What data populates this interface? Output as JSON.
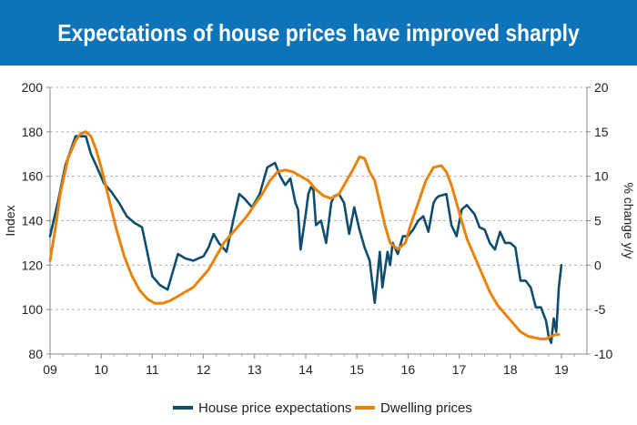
{
  "header": {
    "title": "Expectations of house prices have improved sharply",
    "bg_color": "#0d74b9",
    "text_color": "#ffffff"
  },
  "chart_data": {
    "type": "line",
    "title": "Expectations of house prices have improved sharply",
    "xlabel": "",
    "ylabel": "Index",
    "y2label": "% change y/y",
    "x_ticks": [
      "09",
      "10",
      "11",
      "12",
      "13",
      "14",
      "15",
      "16",
      "17",
      "18",
      "19"
    ],
    "xlim": [
      2009,
      2019.5
    ],
    "ylim": [
      80,
      200
    ],
    "y_ticks": [
      80,
      100,
      120,
      140,
      160,
      180,
      200
    ],
    "y2lim": [
      -10,
      20
    ],
    "y2_ticks": [
      -10,
      -5,
      0,
      5,
      10,
      15,
      20
    ],
    "grid": "horizontal dashed",
    "legend": "bottom",
    "series": [
      {
        "name": "House price expectations",
        "axis": "left",
        "color": "#0e4d6e",
        "x": [
          2009.0,
          2009.15,
          2009.3,
          2009.5,
          2009.6,
          2009.7,
          2009.8,
          2009.9,
          2010.05,
          2010.2,
          2010.35,
          2010.5,
          2010.65,
          2010.8,
          2011.0,
          2011.15,
          2011.3,
          2011.5,
          2011.65,
          2011.8,
          2012.0,
          2012.1,
          2012.2,
          2012.3,
          2012.45,
          2012.6,
          2012.7,
          2012.8,
          2012.95,
          2013.1,
          2013.25,
          2013.4,
          2013.5,
          2013.6,
          2013.7,
          2013.8,
          2013.85,
          2013.9,
          2014.0,
          2014.05,
          2014.1,
          2014.15,
          2014.2,
          2014.3,
          2014.4,
          2014.5,
          2014.55,
          2014.65,
          2014.75,
          2014.85,
          2014.95,
          2015.05,
          2015.15,
          2015.25,
          2015.35,
          2015.45,
          2015.5,
          2015.6,
          2015.65,
          2015.7,
          2015.8,
          2015.9,
          2016.0,
          2016.1,
          2016.2,
          2016.3,
          2016.4,
          2016.5,
          2016.55,
          2016.6,
          2016.75,
          2016.85,
          2016.95,
          2017.05,
          2017.15,
          2017.3,
          2017.4,
          2017.5,
          2017.6,
          2017.7,
          2017.8,
          2017.9,
          2018.0,
          2018.1,
          2018.2,
          2018.3,
          2018.4,
          2018.5,
          2018.6,
          2018.7,
          2018.75,
          2018.8,
          2018.85,
          2018.9,
          2018.95,
          2019.0
        ],
        "values": [
          133,
          148,
          165,
          178,
          178,
          178,
          170,
          165,
          157,
          153,
          148,
          142,
          139,
          137,
          115,
          111,
          109,
          125,
          123,
          122,
          124,
          128,
          134,
          130,
          126,
          142,
          152,
          150,
          146,
          152,
          164,
          166,
          160,
          156,
          159,
          148,
          145,
          127,
          143,
          152,
          155,
          154,
          138,
          140,
          130,
          148,
          151,
          152,
          148,
          134,
          146,
          136,
          128,
          122,
          103,
          126,
          110,
          126,
          120,
          130,
          125,
          133,
          133,
          136,
          140,
          142,
          135,
          148,
          150,
          151,
          152,
          138,
          133,
          145,
          147,
          143,
          137,
          136,
          130,
          127,
          135,
          130,
          130,
          128,
          113,
          113,
          110,
          101,
          101,
          95,
          88,
          85,
          96,
          90,
          110,
          120
        ]
      },
      {
        "name": "Dwelling prices",
        "axis": "right",
        "color": "#e8830c",
        "x": [
          2009.0,
          2009.1,
          2009.2,
          2009.35,
          2009.5,
          2009.6,
          2009.7,
          2009.8,
          2009.9,
          2010.0,
          2010.15,
          2010.3,
          2010.45,
          2010.6,
          2010.75,
          2010.9,
          2011.05,
          2011.2,
          2011.35,
          2011.5,
          2011.65,
          2011.8,
          2011.95,
          2012.1,
          2012.25,
          2012.4,
          2012.55,
          2012.7,
          2012.85,
          2013.0,
          2013.15,
          2013.3,
          2013.45,
          2013.6,
          2013.75,
          2013.9,
          2014.05,
          2014.2,
          2014.35,
          2014.5,
          2014.65,
          2014.8,
          2014.95,
          2015.05,
          2015.15,
          2015.25,
          2015.35,
          2015.45,
          2015.55,
          2015.65,
          2015.8,
          2015.95,
          2016.05,
          2016.2,
          2016.35,
          2016.5,
          2016.65,
          2016.75,
          2016.85,
          2016.95,
          2017.05,
          2017.15,
          2017.3,
          2017.45,
          2017.6,
          2017.75,
          2017.9,
          2018.05,
          2018.2,
          2018.35,
          2018.5,
          2018.6,
          2018.7,
          2018.8,
          2018.9,
          2018.95
        ],
        "values": [
          0.5,
          4.0,
          8.0,
          12.0,
          14.0,
          14.8,
          15.0,
          14.5,
          13.0,
          11.0,
          7.5,
          4.0,
          1.0,
          -1.2,
          -2.8,
          -3.8,
          -4.3,
          -4.3,
          -4.0,
          -3.5,
          -3.0,
          -2.5,
          -1.5,
          -0.5,
          1.0,
          2.5,
          3.5,
          4.5,
          5.5,
          6.8,
          8.0,
          9.5,
          10.5,
          10.7,
          10.5,
          10.0,
          9.5,
          8.5,
          7.8,
          7.5,
          8.0,
          9.5,
          11.0,
          12.2,
          12.0,
          10.5,
          9.5,
          7.0,
          4.5,
          2.5,
          1.8,
          2.5,
          4.5,
          7.0,
          9.5,
          11.0,
          11.2,
          10.5,
          9.0,
          7.0,
          5.0,
          3.0,
          1.0,
          -1.0,
          -3.0,
          -4.5,
          -5.5,
          -6.5,
          -7.5,
          -8.0,
          -8.2,
          -8.3,
          -8.3,
          -8.0,
          -7.8,
          -7.8
        ]
      }
    ]
  }
}
